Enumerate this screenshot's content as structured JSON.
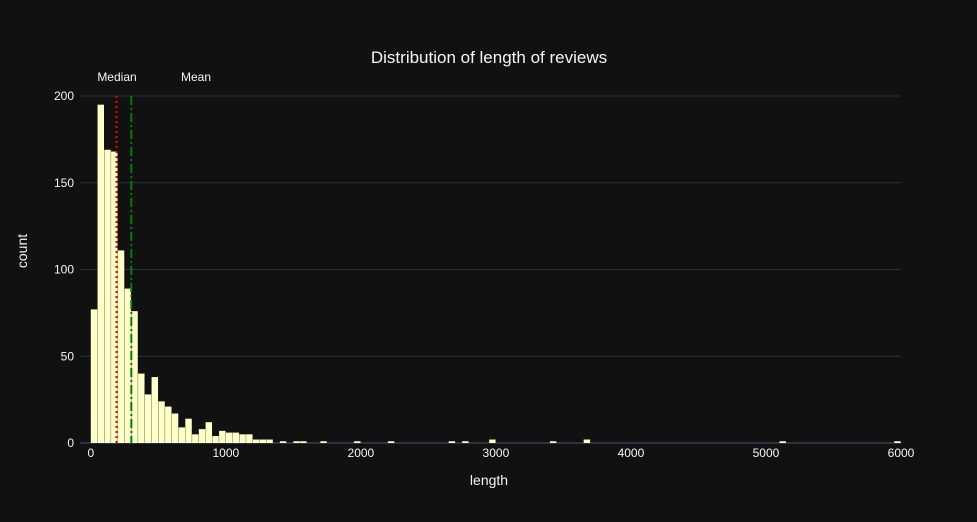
{
  "chart_data": {
    "type": "bar",
    "title": "Distribution of length of reviews",
    "xlabel": "length",
    "ylabel": "count",
    "xlim": [
      -80,
      6000
    ],
    "ylim": [
      0,
      200
    ],
    "xticks": [
      0,
      1000,
      2000,
      3000,
      4000,
      5000,
      6000
    ],
    "yticks": [
      0,
      50,
      100,
      150,
      200
    ],
    "bin_width": 50,
    "bar_color": "#ffffc8",
    "grid": true,
    "bins": [
      {
        "x": 0,
        "count": 77
      },
      {
        "x": 50,
        "count": 195
      },
      {
        "x": 100,
        "count": 169
      },
      {
        "x": 150,
        "count": 168
      },
      {
        "x": 200,
        "count": 111
      },
      {
        "x": 250,
        "count": 89
      },
      {
        "x": 300,
        "count": 76
      },
      {
        "x": 350,
        "count": 40
      },
      {
        "x": 400,
        "count": 28
      },
      {
        "x": 450,
        "count": 38
      },
      {
        "x": 500,
        "count": 24
      },
      {
        "x": 550,
        "count": 21
      },
      {
        "x": 600,
        "count": 17
      },
      {
        "x": 650,
        "count": 9
      },
      {
        "x": 700,
        "count": 14
      },
      {
        "x": 750,
        "count": 5
      },
      {
        "x": 800,
        "count": 8
      },
      {
        "x": 850,
        "count": 12
      },
      {
        "x": 900,
        "count": 4
      },
      {
        "x": 950,
        "count": 7
      },
      {
        "x": 1000,
        "count": 6
      },
      {
        "x": 1050,
        "count": 6
      },
      {
        "x": 1100,
        "count": 5
      },
      {
        "x": 1150,
        "count": 5
      },
      {
        "x": 1200,
        "count": 2
      },
      {
        "x": 1250,
        "count": 2
      },
      {
        "x": 1300,
        "count": 2
      },
      {
        "x": 1400,
        "count": 1
      },
      {
        "x": 1500,
        "count": 1
      },
      {
        "x": 1550,
        "count": 1
      },
      {
        "x": 1700,
        "count": 1
      },
      {
        "x": 1950,
        "count": 1
      },
      {
        "x": 2200,
        "count": 1
      },
      {
        "x": 2650,
        "count": 1
      },
      {
        "x": 2750,
        "count": 1
      },
      {
        "x": 2950,
        "count": 2
      },
      {
        "x": 3400,
        "count": 1
      },
      {
        "x": 3650,
        "count": 2
      },
      {
        "x": 5100,
        "count": 1
      },
      {
        "x": 5950,
        "count": 1
      }
    ],
    "reference_lines": [
      {
        "label": "Median",
        "x": 190,
        "color": "#ff0000",
        "style": "dotted"
      },
      {
        "label": "Mean",
        "x": 300,
        "color": "#008000",
        "style": "dashdot"
      }
    ]
  }
}
